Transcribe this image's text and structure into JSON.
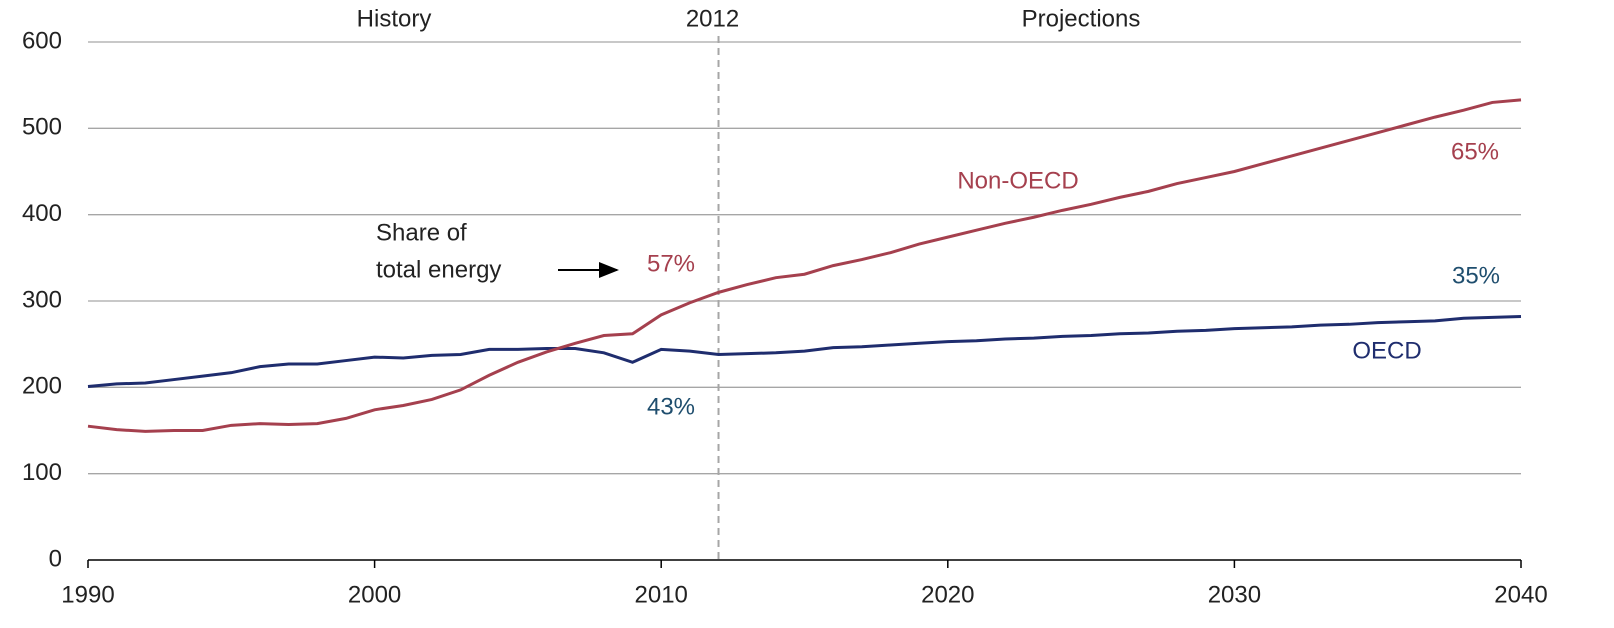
{
  "chart_data": {
    "type": "line",
    "x": [
      1990,
      1991,
      1992,
      1993,
      1994,
      1995,
      1996,
      1997,
      1998,
      1999,
      2000,
      2001,
      2002,
      2003,
      2004,
      2005,
      2006,
      2007,
      2008,
      2009,
      2010,
      2011,
      2012,
      2013,
      2014,
      2015,
      2016,
      2017,
      2018,
      2019,
      2020,
      2021,
      2022,
      2023,
      2024,
      2025,
      2026,
      2027,
      2028,
      2029,
      2030,
      2031,
      2032,
      2033,
      2034,
      2035,
      2036,
      2037,
      2038,
      2039,
      2040
    ],
    "series": [
      {
        "name": "OECD",
        "color": "#1f2d6e",
        "values": [
          201,
          204,
          205,
          209,
          213,
          217,
          224,
          227,
          227,
          231,
          235,
          234,
          237,
          238,
          244,
          244,
          245,
          245,
          240,
          229,
          244,
          242,
          238,
          239,
          240,
          242,
          246,
          247,
          249,
          251,
          253,
          254,
          256,
          257,
          259,
          260,
          262,
          263,
          265,
          266,
          268,
          269,
          270,
          272,
          273,
          275,
          276,
          277,
          280,
          281,
          282
        ]
      },
      {
        "name": "Non-OECD",
        "color": "#a5404e",
        "values": [
          155,
          151,
          149,
          150,
          150,
          156,
          158,
          157,
          158,
          164,
          174,
          179,
          186,
          197,
          214,
          229,
          241,
          251,
          260,
          262,
          284,
          298,
          310,
          319,
          327,
          331,
          341,
          348,
          356,
          366,
          374,
          382,
          390,
          397,
          405,
          412,
          420,
          427,
          436,
          443,
          450,
          459,
          468,
          477,
          486,
          495,
          504,
          513,
          521,
          530,
          533
        ]
      }
    ],
    "xlim": [
      1990,
      2040
    ],
    "xticks": [
      1990,
      2000,
      2010,
      2020,
      2030,
      2040
    ],
    "ylim": [
      0,
      600
    ],
    "yticks": [
      0,
      100,
      200,
      300,
      400,
      500,
      600
    ],
    "grid": true,
    "divider": {
      "x": 2012,
      "label": "2012"
    },
    "period_labels": [
      "History",
      "Projections"
    ],
    "share_note": [
      "Share of",
      "total energy"
    ],
    "share_labels": [
      {
        "text": "57%",
        "color": "#a5404e"
      },
      {
        "text": "43%",
        "color": "#1f4e6e"
      },
      {
        "text": "65%",
        "color": "#a5404e"
      },
      {
        "text": "35%",
        "color": "#1f4e6e"
      }
    ]
  }
}
